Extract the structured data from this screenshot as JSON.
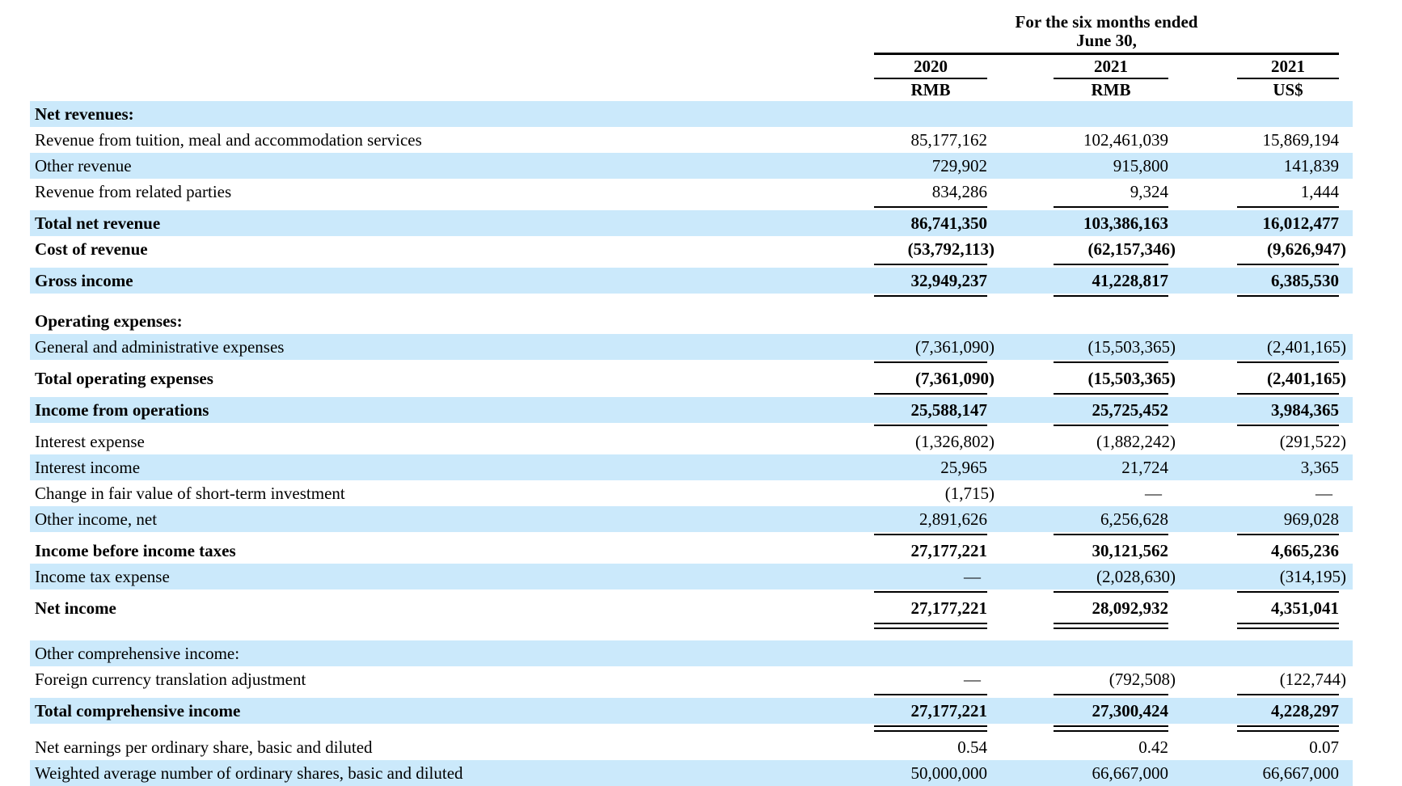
{
  "header": {
    "group_title_line1": "For the six months ended",
    "group_title_line2": "June 30,",
    "columns": [
      {
        "year": "2020",
        "currency": "RMB"
      },
      {
        "year": "2021",
        "currency": "RMB"
      },
      {
        "year": "2021",
        "currency": "US$"
      }
    ]
  },
  "colors": {
    "stripe_blue": "#cbe9fb",
    "text": "#000000",
    "rule": "#000000"
  },
  "rows": [
    {
      "label": "Net revenues:",
      "bold": true,
      "shade": true,
      "values": [
        "",
        "",
        ""
      ]
    },
    {
      "label": "Revenue from tuition, meal and accommodation services",
      "bold": false,
      "shade": false,
      "values": [
        "85,177,162",
        "102,461,039",
        "15,869,194"
      ]
    },
    {
      "label": "Other revenue",
      "bold": false,
      "shade": true,
      "values": [
        "729,902",
        "915,800",
        "141,839"
      ]
    },
    {
      "label": "Revenue from related parties",
      "bold": false,
      "shade": false,
      "values": [
        "834,286",
        "9,324",
        "1,444"
      ],
      "rule": "single"
    },
    {
      "label": "Total net revenue",
      "bold": true,
      "shade": true,
      "values": [
        "86,741,350",
        "103,386,163",
        "16,012,477"
      ]
    },
    {
      "label": "Cost of revenue",
      "bold": true,
      "shade": false,
      "values": [
        "(53,792,113)",
        "(62,157,346)",
        "(9,626,947)"
      ],
      "rule": "single"
    },
    {
      "label": "Gross income",
      "bold": true,
      "shade": true,
      "values": [
        "32,949,237",
        "41,228,817",
        "6,385,530"
      ],
      "rule": "single"
    },
    {
      "spacer": true
    },
    {
      "label": "Operating expenses:",
      "bold": true,
      "shade": false,
      "values": [
        "",
        "",
        ""
      ]
    },
    {
      "label": "General and administrative expenses",
      "bold": false,
      "shade": true,
      "values": [
        "(7,361,090)",
        "(15,503,365)",
        "(2,401,165)"
      ],
      "rule": "single"
    },
    {
      "label": "Total operating expenses",
      "bold": true,
      "shade": false,
      "values": [
        "(7,361,090)",
        "(15,503,365)",
        "(2,401,165)"
      ],
      "rule": "single"
    },
    {
      "label": "Income from operations",
      "bold": true,
      "shade": true,
      "values": [
        "25,588,147",
        "25,725,452",
        "3,984,365"
      ],
      "rule": "single"
    },
    {
      "label": "Interest expense",
      "bold": false,
      "shade": false,
      "values": [
        "(1,326,802)",
        "(1,882,242)",
        "(291,522)"
      ]
    },
    {
      "label": "Interest income",
      "bold": false,
      "shade": true,
      "values": [
        "25,965",
        "21,724",
        "3,365"
      ]
    },
    {
      "label": "Change in fair value of short-term investment",
      "bold": false,
      "shade": false,
      "values": [
        "(1,715)",
        "—",
        "—"
      ]
    },
    {
      "label": "Other income, net",
      "bold": false,
      "shade": true,
      "values": [
        "2,891,626",
        "6,256,628",
        "969,028"
      ],
      "rule": "single"
    },
    {
      "label": "Income before income taxes",
      "bold": true,
      "shade": false,
      "values": [
        "27,177,221",
        "30,121,562",
        "4,665,236"
      ]
    },
    {
      "label": "Income tax expense",
      "bold": false,
      "shade": true,
      "values": [
        "—",
        "(2,028,630)",
        "(314,195)"
      ],
      "rule": "single"
    },
    {
      "label": "Net income",
      "bold": true,
      "shade": false,
      "values": [
        "27,177,221",
        "28,092,932",
        "4,351,041"
      ],
      "rule": "double"
    },
    {
      "spacer": true
    },
    {
      "label": "Other comprehensive income:",
      "bold": false,
      "shade": true,
      "values": [
        "",
        "",
        ""
      ]
    },
    {
      "label": "Foreign currency translation adjustment",
      "bold": false,
      "shade": false,
      "values": [
        "—",
        "(792,508)",
        "(122,744)"
      ],
      "rule": "single"
    },
    {
      "label": "Total comprehensive income",
      "bold": true,
      "shade": true,
      "values": [
        "27,177,221",
        "27,300,424",
        "4,228,297"
      ],
      "rule": "double"
    },
    {
      "label": "Net earnings per ordinary share, basic and diluted",
      "bold": false,
      "shade": false,
      "values": [
        "0.54",
        "0.42",
        "0.07"
      ]
    },
    {
      "label": "Weighted average number of ordinary shares, basic and diluted",
      "bold": false,
      "shade": true,
      "values": [
        "50,000,000",
        "66,667,000",
        "66,667,000"
      ]
    }
  ]
}
